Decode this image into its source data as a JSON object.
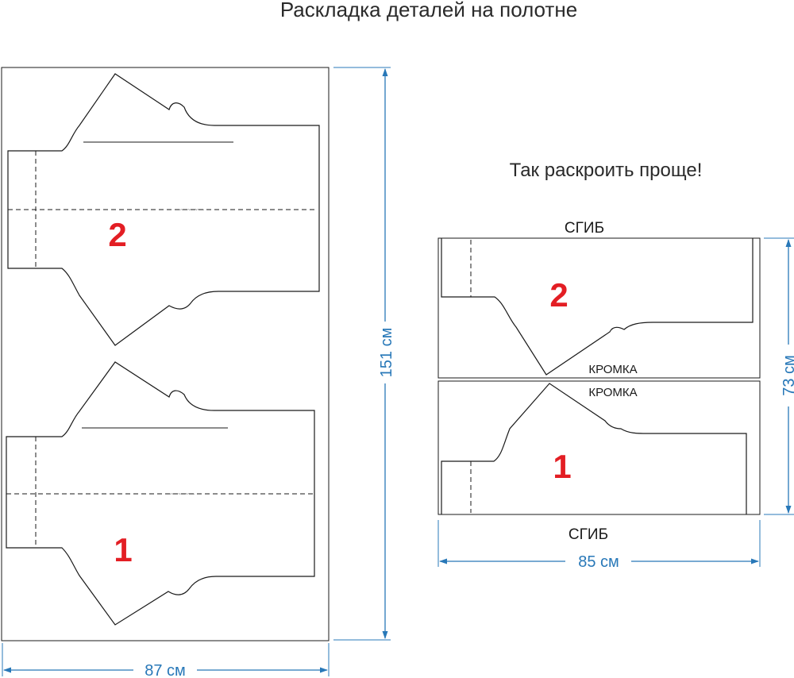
{
  "title": "Раскладка деталей на полотне",
  "subtitle": "Так раскроить проще!",
  "left_layout": {
    "width_label": "87 см",
    "height_label": "151 см",
    "piece_top_number": "2",
    "piece_bottom_number": "1"
  },
  "right_layout": {
    "fold_top_label": "СГИБ",
    "fold_bottom_label": "СГИБ",
    "selvage_upper_label": "КРОМКА",
    "selvage_lower_label": "КРОМКА",
    "piece_top_number": "2",
    "piece_bottom_number": "1",
    "width_label": "85 см",
    "height_label": "73 см"
  },
  "colors": {
    "dimension": "#2878b8",
    "piece_number": "#e31e24",
    "outline": "#1a1a1a"
  }
}
